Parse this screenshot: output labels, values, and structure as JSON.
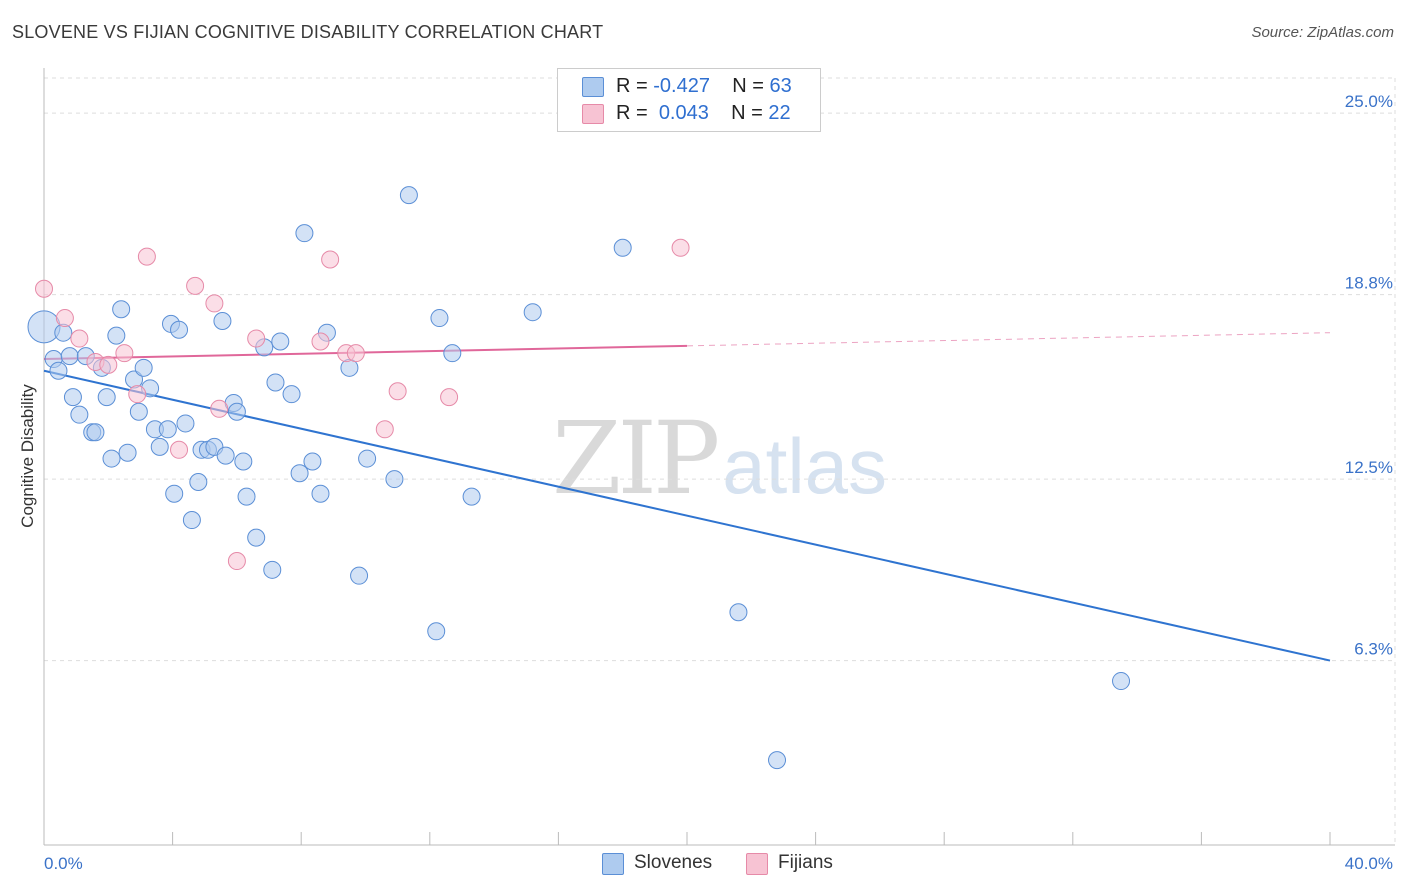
{
  "header": {
    "title": "SLOVENE VS FIJIAN COGNITIVE DISABILITY CORRELATION CHART",
    "source": "Source: ZipAtlas.com"
  },
  "watermark": {
    "zip": "ZIP",
    "atlas": "atlas"
  },
  "legend": {
    "rows": [
      {
        "r_label": "R =",
        "r_value": "-0.427",
        "n_label": "N =",
        "n_value": "63"
      },
      {
        "r_label": "R =",
        "r_value": "0.043",
        "n_label": "N =",
        "n_value": "22"
      }
    ],
    "bottom": [
      "Slovenes",
      "Fijians"
    ]
  },
  "colors": {
    "slovenes_fill": "#aecbef",
    "slovenes_stroke": "#5b8fd6",
    "slovenes_line": "#2f74d0",
    "fijians_fill": "#f7c3d3",
    "fijians_stroke": "#e68aa8",
    "fijians_line": "#e0679a",
    "axis_text": "#3a72c8",
    "grid": "#dddddd"
  },
  "chart_data": {
    "type": "scatter",
    "title": "SLOVENE VS FIJIAN COGNITIVE DISABILITY CORRELATION CHART",
    "xlabel": "",
    "ylabel": "Cognitive Disability",
    "xlim": [
      0,
      40
    ],
    "ylim": [
      0,
      26.2
    ],
    "x_tick_labels": [
      "0.0%",
      "40.0%"
    ],
    "y_ticks": [
      6.3,
      12.5,
      18.8,
      25.0
    ],
    "y_tick_labels": [
      "6.3%",
      "12.5%",
      "18.8%",
      "25.0%"
    ],
    "grid": true,
    "legend_placement": "top-center",
    "series": [
      {
        "name": "Slovenes",
        "r": -0.427,
        "n": 63,
        "trend": {
          "x": [
            0,
            40
          ],
          "y": [
            16.2,
            6.3
          ]
        },
        "points": [
          {
            "x": 0.0,
            "y": 17.7,
            "big": true
          },
          {
            "x": 0.3,
            "y": 16.6
          },
          {
            "x": 0.45,
            "y": 16.2
          },
          {
            "x": 0.6,
            "y": 17.5
          },
          {
            "x": 0.8,
            "y": 16.7
          },
          {
            "x": 0.9,
            "y": 15.3
          },
          {
            "x": 1.1,
            "y": 14.7
          },
          {
            "x": 1.3,
            "y": 16.7
          },
          {
            "x": 1.5,
            "y": 14.1
          },
          {
            "x": 1.6,
            "y": 14.1
          },
          {
            "x": 1.8,
            "y": 16.3
          },
          {
            "x": 1.95,
            "y": 15.3
          },
          {
            "x": 2.1,
            "y": 13.2
          },
          {
            "x": 2.25,
            "y": 17.4
          },
          {
            "x": 2.4,
            "y": 18.3
          },
          {
            "x": 2.6,
            "y": 13.4
          },
          {
            "x": 2.8,
            "y": 15.9
          },
          {
            "x": 2.95,
            "y": 14.8
          },
          {
            "x": 3.1,
            "y": 16.3
          },
          {
            "x": 3.3,
            "y": 15.6
          },
          {
            "x": 3.45,
            "y": 14.2
          },
          {
            "x": 3.6,
            "y": 13.6
          },
          {
            "x": 3.85,
            "y": 14.2
          },
          {
            "x": 3.95,
            "y": 17.8
          },
          {
            "x": 4.05,
            "y": 12.0
          },
          {
            "x": 4.2,
            "y": 17.6
          },
          {
            "x": 4.4,
            "y": 14.4
          },
          {
            "x": 4.6,
            "y": 11.1
          },
          {
            "x": 4.8,
            "y": 12.4
          },
          {
            "x": 4.9,
            "y": 13.5
          },
          {
            "x": 5.1,
            "y": 13.5
          },
          {
            "x": 5.3,
            "y": 13.6
          },
          {
            "x": 5.55,
            "y": 17.9
          },
          {
            "x": 5.65,
            "y": 13.3
          },
          {
            "x": 5.9,
            "y": 15.1
          },
          {
            "x": 6.0,
            "y": 14.8
          },
          {
            "x": 6.2,
            "y": 13.1
          },
          {
            "x": 6.3,
            "y": 11.9
          },
          {
            "x": 6.6,
            "y": 10.5
          },
          {
            "x": 6.85,
            "y": 17.0
          },
          {
            "x": 7.1,
            "y": 9.4
          },
          {
            "x": 7.2,
            "y": 15.8
          },
          {
            "x": 7.35,
            "y": 17.2
          },
          {
            "x": 7.7,
            "y": 15.4
          },
          {
            "x": 7.95,
            "y": 12.7
          },
          {
            "x": 8.1,
            "y": 20.9
          },
          {
            "x": 8.35,
            "y": 13.1
          },
          {
            "x": 8.6,
            "y": 12.0
          },
          {
            "x": 8.8,
            "y": 17.5
          },
          {
            "x": 9.5,
            "y": 16.3
          },
          {
            "x": 9.8,
            "y": 9.2
          },
          {
            "x": 10.05,
            "y": 13.2
          },
          {
            "x": 10.9,
            "y": 12.5
          },
          {
            "x": 11.35,
            "y": 22.2
          },
          {
            "x": 12.2,
            "y": 7.3
          },
          {
            "x": 12.3,
            "y": 18.0
          },
          {
            "x": 12.7,
            "y": 16.8
          },
          {
            "x": 13.3,
            "y": 11.9
          },
          {
            "x": 15.2,
            "y": 18.2
          },
          {
            "x": 18.0,
            "y": 20.4
          },
          {
            "x": 21.6,
            "y": 7.95
          },
          {
            "x": 22.8,
            "y": 2.9
          },
          {
            "x": 33.5,
            "y": 5.6
          }
        ]
      },
      {
        "name": "Fijians",
        "r": 0.043,
        "n": 22,
        "trend": {
          "x": [
            0,
            20
          ],
          "y": [
            16.6,
            17.05
          ]
        },
        "trend_extension": {
          "x": [
            20,
            40
          ],
          "y": [
            17.05,
            17.5
          ]
        },
        "points": [
          {
            "x": 0.0,
            "y": 19.0
          },
          {
            "x": 0.65,
            "y": 18.0
          },
          {
            "x": 1.1,
            "y": 17.3
          },
          {
            "x": 1.6,
            "y": 16.5
          },
          {
            "x": 2.0,
            "y": 16.4
          },
          {
            "x": 2.5,
            "y": 16.8
          },
          {
            "x": 2.9,
            "y": 15.4
          },
          {
            "x": 3.2,
            "y": 20.1
          },
          {
            "x": 4.2,
            "y": 13.5
          },
          {
            "x": 4.7,
            "y": 19.1
          },
          {
            "x": 5.3,
            "y": 18.5
          },
          {
            "x": 5.45,
            "y": 14.9
          },
          {
            "x": 6.0,
            "y": 9.7
          },
          {
            "x": 6.6,
            "y": 17.3
          },
          {
            "x": 8.6,
            "y": 17.2
          },
          {
            "x": 8.9,
            "y": 20.0
          },
          {
            "x": 9.4,
            "y": 16.8
          },
          {
            "x": 9.7,
            "y": 16.8
          },
          {
            "x": 10.6,
            "y": 14.2
          },
          {
            "x": 11.0,
            "y": 15.5
          },
          {
            "x": 12.6,
            "y": 15.3
          },
          {
            "x": 19.8,
            "y": 20.4
          }
        ]
      }
    ]
  }
}
